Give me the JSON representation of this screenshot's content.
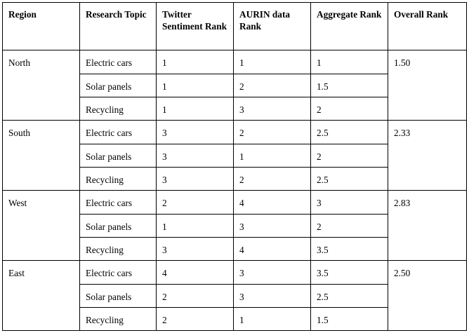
{
  "table": {
    "headers": [
      "Region",
      "Research Topic",
      "Twitter Sentiment Rank",
      "AURIN data Rank",
      "Aggregate Rank",
      "Overall Rank"
    ],
    "regions": [
      {
        "name": "North",
        "overall": "1.50",
        "rows": [
          {
            "topic": "Electric cars",
            "twitter": "1",
            "aurin": "1",
            "aggregate": "1"
          },
          {
            "topic": "Solar panels",
            "twitter": "1",
            "aurin": "2",
            "aggregate": "1.5"
          },
          {
            "topic": "Recycling",
            "twitter": "1",
            "aurin": "3",
            "aggregate": "2"
          }
        ]
      },
      {
        "name": "South",
        "overall": "2.33",
        "rows": [
          {
            "topic": "Electric cars",
            "twitter": "3",
            "aurin": "2",
            "aggregate": "2.5"
          },
          {
            "topic": "Solar panels",
            "twitter": "3",
            "aurin": "1",
            "aggregate": "2"
          },
          {
            "topic": "Recycling",
            "twitter": "3",
            "aurin": "2",
            "aggregate": "2.5"
          }
        ]
      },
      {
        "name": "West",
        "overall": "2.83",
        "rows": [
          {
            "topic": "Electric cars",
            "twitter": "2",
            "aurin": "4",
            "aggregate": "3"
          },
          {
            "topic": "Solar panels",
            "twitter": "1",
            "aurin": "3",
            "aggregate": "2"
          },
          {
            "topic": "Recycling",
            "twitter": "3",
            "aurin": "4",
            "aggregate": "3.5"
          }
        ]
      },
      {
        "name": "East",
        "overall": "2.50",
        "rows": [
          {
            "topic": "Electric cars",
            "twitter": "4",
            "aurin": "3",
            "aggregate": "3.5"
          },
          {
            "topic": "Solar panels",
            "twitter": "2",
            "aurin": "3",
            "aggregate": "2.5"
          },
          {
            "topic": "Recycling",
            "twitter": "2",
            "aurin": "1",
            "aggregate": "1.5"
          }
        ]
      }
    ]
  }
}
